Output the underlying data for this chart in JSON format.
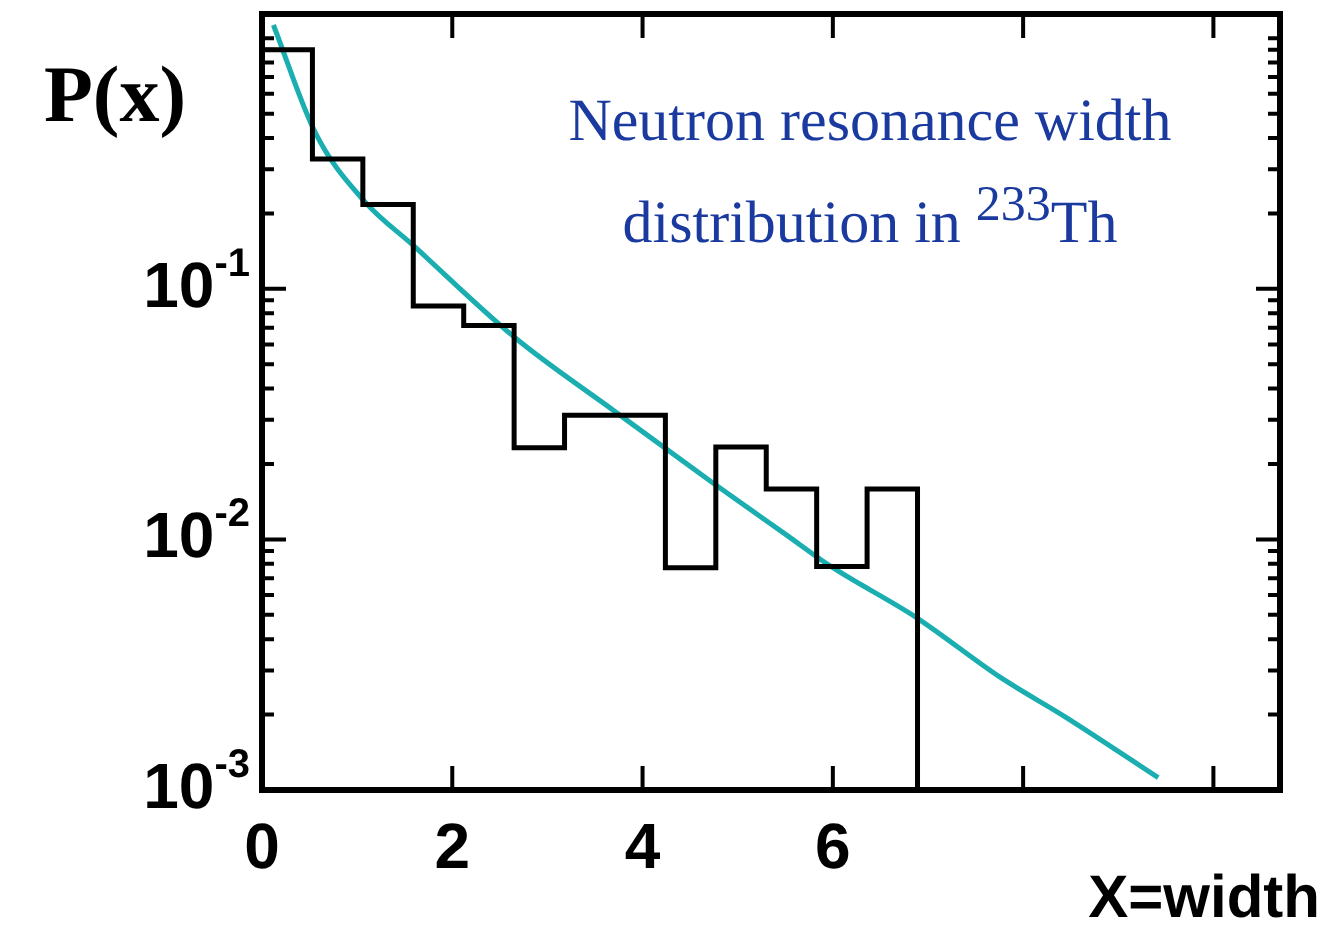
{
  "chart_data": {
    "type": "histogram",
    "xlabel": "X=width",
    "ylabel": "P(x)",
    "annotations": [
      "Neutron resonance width distribution in $^{233}$Th"
    ],
    "series": [
      {
        "type": "histogram",
        "color": "#000000",
        "bins": [
          0,
          0.53,
          1.06,
          1.59,
          2.12,
          2.65,
          3.18,
          3.71,
          4.24,
          4.77,
          5.3,
          5.83,
          6.36,
          6.89
        ],
        "values": [
          0.9,
          0.33,
          0.217,
          0.0855,
          0.0714,
          0.0232,
          0.0313,
          0.0313,
          0.0077,
          0.0234,
          0.0159,
          0.0078,
          0.0159
        ]
      },
      {
        "type": "line",
        "color": "#1aaeb0",
        "x": [
          0.12,
          0.56,
          1.07,
          1.59,
          2.66,
          3.71,
          4.74,
          5.5,
          5.98,
          6.87,
          7.77,
          8.45,
          9.42
        ],
        "values": [
          1.13,
          0.42,
          0.225,
          0.149,
          0.0638,
          0.0324,
          0.0168,
          0.0105,
          0.0078,
          0.0049,
          0.0028,
          0.00195,
          0.00112
        ]
      }
    ],
    "log": true,
    "xlim": [
      0,
      10.7
    ],
    "ylim": [
      0.001,
      1.25
    ],
    "xticks": [
      0,
      2,
      4,
      6,
      {
        "value": 8,
        "label": null
      },
      {
        "value": 10,
        "label": null
      }
    ],
    "yticks": [
      {
        "value": 0.001,
        "label": "10$^{-3}$"
      },
      {
        "value": 0.002,
        "label": null
      },
      {
        "value": 0.003,
        "label": null
      },
      {
        "value": 0.004,
        "label": null
      },
      {
        "value": 0.005,
        "label": null
      },
      {
        "value": 0.006,
        "label": null
      },
      {
        "value": 0.007,
        "label": null
      },
      {
        "value": 0.008,
        "label": null
      },
      {
        "value": 0.009,
        "label": null
      },
      {
        "value": 0.01,
        "label": "10$^{-2}$"
      },
      {
        "value": 0.02,
        "label": null
      },
      {
        "value": 0.03,
        "label": null
      },
      {
        "value": 0.04,
        "label": null
      },
      {
        "value": 0.05,
        "label": null
      },
      {
        "value": 0.06,
        "label": null
      },
      {
        "value": 0.07,
        "label": null
      },
      {
        "value": 0.08,
        "label": null
      },
      {
        "value": 0.09,
        "label": null
      },
      {
        "value": 0.1,
        "label": "10$^{-1}$"
      },
      {
        "value": 0.2,
        "label": null
      },
      {
        "value": 0.3,
        "label": null
      },
      {
        "value": 0.4,
        "label": null
      },
      {
        "value": 0.5,
        "label": null
      },
      {
        "value": 0.6,
        "label": null
      },
      {
        "value": 0.7,
        "label": null
      },
      {
        "value": 0.8,
        "label": null
      },
      {
        "value": 0.9,
        "label": null
      },
      {
        "value": 1,
        "label": null
      }
    ],
    "legend": false
  }
}
